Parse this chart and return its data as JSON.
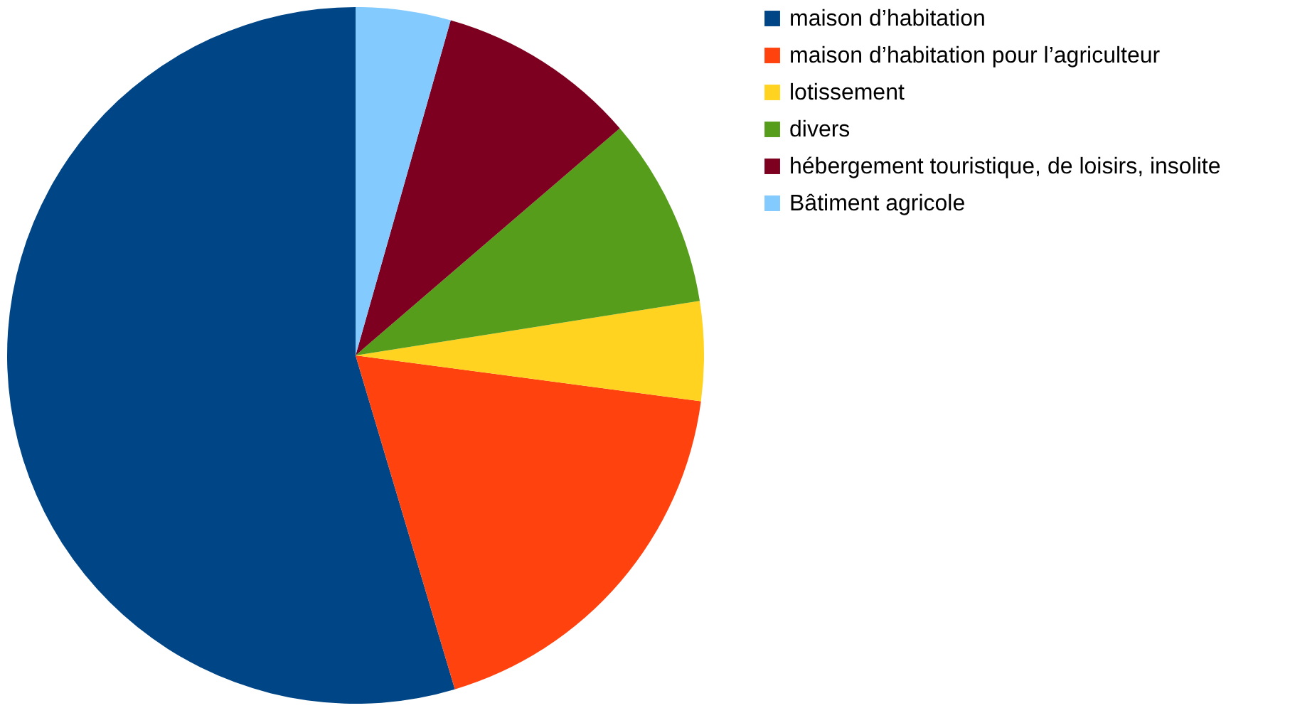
{
  "chart_data": {
    "type": "pie",
    "categories": [
      "maison d’habitation",
      "maison d’habitation pour l’agriculteur",
      "lotissement",
      "divers",
      "hébergement touristique, de loisirs, insolite",
      "Bâtiment agricole"
    ],
    "values": [
      54.6,
      18.3,
      4.6,
      8.8,
      9.3,
      4.4
    ],
    "colors": [
      "#004586",
      "#ff420e",
      "#ffd320",
      "#579d1c",
      "#7e0021",
      "#83caff"
    ],
    "legend": "right"
  }
}
